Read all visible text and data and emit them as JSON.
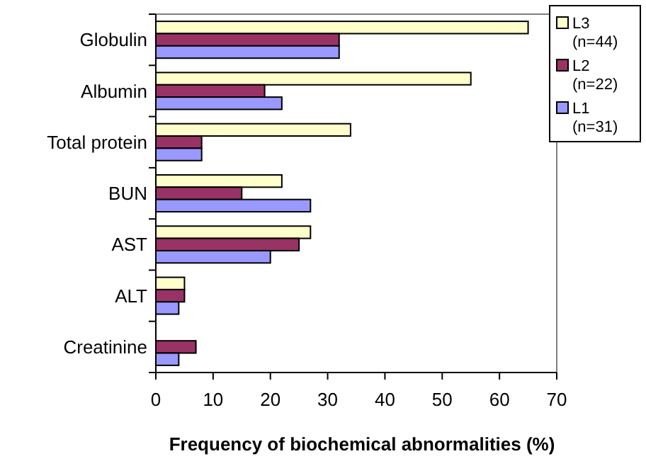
{
  "chart_data": {
    "type": "bar",
    "orientation": "horizontal",
    "xlabel": "Frequency of biochemical abnormalities (%)",
    "categories": [
      "Globulin",
      "Albumin",
      "Total protein",
      "BUN",
      "AST",
      "ALT",
      "Creatinine"
    ],
    "series": [
      {
        "name": "L3 (n=44)",
        "color": "#ffffcc",
        "values": [
          65,
          55,
          34,
          22,
          27,
          5,
          0
        ]
      },
      {
        "name": "L2 (n=22)",
        "color": "#993366",
        "values": [
          32,
          19,
          8,
          15,
          25,
          5,
          7
        ]
      },
      {
        "name": "L1 (n=31)",
        "color": "#9999ff",
        "values": [
          32,
          22,
          8,
          27,
          20,
          4,
          4
        ]
      }
    ],
    "xlim": [
      0,
      70
    ],
    "xticks": [
      0,
      10,
      20,
      30,
      40,
      50,
      60,
      70
    ],
    "grid": false,
    "legend": "top right"
  }
}
